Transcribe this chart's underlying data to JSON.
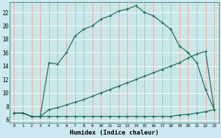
{
  "xlabel": "Humidex (Indice chaleur)",
  "bg_color": "#c8e8e8",
  "fig_bg_color": "#cce8f0",
  "line_color": "#1a6b5a",
  "grid_color_v": "#e8a0a0",
  "grid_color_h": "#ffffff",
  "xlim": [
    -0.5,
    23.5
  ],
  "ylim": [
    5.5,
    23.5
  ],
  "yticks": [
    6,
    8,
    10,
    12,
    14,
    16,
    18,
    20,
    22
  ],
  "xticks": [
    0,
    1,
    2,
    3,
    4,
    5,
    6,
    7,
    8,
    9,
    10,
    11,
    12,
    13,
    14,
    15,
    16,
    17,
    18,
    19,
    20,
    21,
    22,
    23
  ],
  "line1_x": [
    0,
    1,
    2,
    3,
    4,
    5,
    6,
    7,
    8,
    9,
    10,
    11,
    12,
    13,
    14,
    15,
    16,
    17,
    18,
    19,
    20,
    21,
    22,
    23
  ],
  "line1_y": [
    7.0,
    7.0,
    6.5,
    6.5,
    14.5,
    14.3,
    16.0,
    18.5,
    19.5,
    20.0,
    21.0,
    21.5,
    22.2,
    22.5,
    23.0,
    22.0,
    21.5,
    20.5,
    19.5,
    17.0,
    16.0,
    14.5,
    10.5,
    7.5
  ],
  "line2_x": [
    0,
    1,
    2,
    3,
    4,
    5,
    6,
    7,
    8,
    9,
    10,
    11,
    12,
    13,
    14,
    15,
    16,
    17,
    18,
    19,
    20,
    21,
    22,
    23
  ],
  "line2_y": [
    7.0,
    7.0,
    6.5,
    6.5,
    7.5,
    7.8,
    8.2,
    8.6,
    9.0,
    9.5,
    10.0,
    10.5,
    11.0,
    11.5,
    12.0,
    12.5,
    13.0,
    13.5,
    14.0,
    14.5,
    15.2,
    15.8,
    16.2,
    7.5
  ],
  "line3_x": [
    0,
    1,
    2,
    3,
    4,
    5,
    6,
    7,
    8,
    9,
    10,
    11,
    12,
    13,
    14,
    15,
    16,
    17,
    18,
    19,
    20,
    21,
    22,
    23
  ],
  "line3_y": [
    7.0,
    7.0,
    6.5,
    6.5,
    6.5,
    6.5,
    6.5,
    6.5,
    6.5,
    6.5,
    6.5,
    6.5,
    6.5,
    6.5,
    6.5,
    6.5,
    6.5,
    6.5,
    6.5,
    6.7,
    6.8,
    7.0,
    7.2,
    7.5
  ]
}
